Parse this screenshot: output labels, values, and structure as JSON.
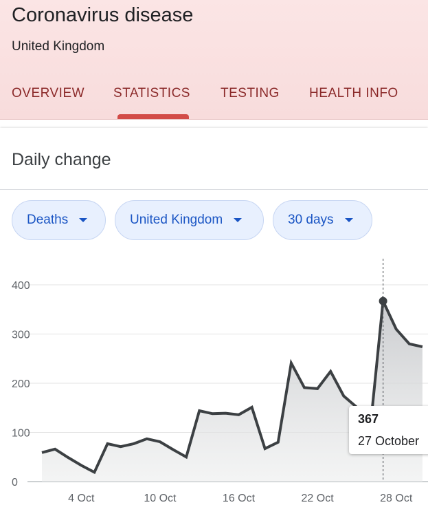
{
  "header": {
    "title": "Coronavirus disease",
    "subtitle": "United Kingdom",
    "tabs": [
      {
        "label": "OVERVIEW"
      },
      {
        "label": "STATISTICS",
        "active": true
      },
      {
        "label": "TESTING"
      },
      {
        "label": "HEALTH INFO"
      }
    ]
  },
  "card": {
    "title": "Daily change",
    "filters": [
      {
        "label": "Deaths"
      },
      {
        "label": "United Kingdom"
      },
      {
        "label": "30 days"
      }
    ]
  },
  "tooltip": {
    "value": "367",
    "date": "27 October"
  },
  "colors": {
    "line": "#3c4043",
    "tab_text": "#8b2a2a",
    "tab_indicator": "#d24b47",
    "chip_text": "#1a55c4",
    "chip_bg": "#e8f0fe"
  },
  "chart_data": {
    "type": "area",
    "title": "",
    "xlabel": "",
    "ylabel": "",
    "x": [
      "1 Oct",
      "2 Oct",
      "3 Oct",
      "4 Oct",
      "5 Oct",
      "6 Oct",
      "7 Oct",
      "8 Oct",
      "9 Oct",
      "10 Oct",
      "11 Oct",
      "12 Oct",
      "13 Oct",
      "14 Oct",
      "15 Oct",
      "16 Oct",
      "17 Oct",
      "18 Oct",
      "19 Oct",
      "20 Oct",
      "21 Oct",
      "22 Oct",
      "23 Oct",
      "24 Oct",
      "25 Oct",
      "26 Oct",
      "27 Oct",
      "28 Oct",
      "29 Oct",
      "30 Oct"
    ],
    "xticks": [
      "4 Oct",
      "10 Oct",
      "16 Oct",
      "22 Oct",
      "28 Oct"
    ],
    "series": [
      {
        "values": [
          59,
          66,
          49,
          33,
          19,
          77,
          71,
          77,
          87,
          81,
          65,
          50,
          144,
          138,
          139,
          136,
          151,
          67,
          80,
          241,
          191,
          189,
          224,
          174,
          151,
          102,
          367,
          310,
          280,
          274
        ]
      }
    ],
    "yticks": [
      0,
      100,
      200,
      300,
      400
    ],
    "ylim": [
      0,
      400
    ],
    "grid": true,
    "highlight": {
      "x": "27 Oct",
      "value": 367
    }
  }
}
